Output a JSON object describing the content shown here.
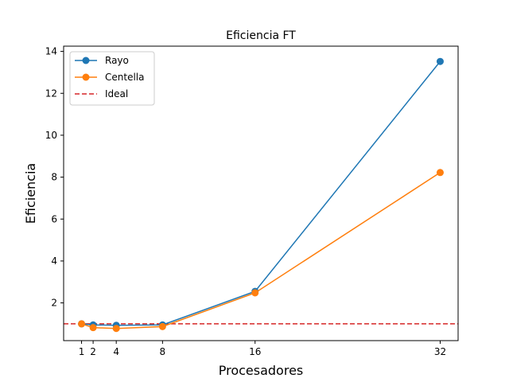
{
  "chart_data": {
    "type": "line",
    "title": "Eficiencia FT",
    "xlabel": "Procesadores",
    "ylabel": "Eficiencia",
    "x": [
      1,
      2,
      4,
      8,
      16,
      32
    ],
    "x_ticks": [
      1,
      2,
      4,
      8,
      16,
      32
    ],
    "y_ticks": [
      2,
      4,
      6,
      8,
      10,
      12,
      14
    ],
    "xlim": [
      -0.55,
      33.55
    ],
    "ylim": [
      0.2,
      14.25
    ],
    "grid": false,
    "legend_position": "upper-left",
    "series": [
      {
        "name": "Rayo",
        "values": [
          1.0,
          0.95,
          0.93,
          0.95,
          2.55,
          13.52
        ],
        "color": "#1f77b4",
        "marker": "circle",
        "line_style": "solid"
      },
      {
        "name": "Centella",
        "values": [
          1.0,
          0.82,
          0.78,
          0.87,
          2.48,
          8.22
        ],
        "color": "#ff7f0e",
        "marker": "circle",
        "line_style": "solid"
      }
    ],
    "reference_line": {
      "name": "Ideal",
      "y": 1.0,
      "color": "#d62728",
      "line_style": "dashed"
    }
  }
}
